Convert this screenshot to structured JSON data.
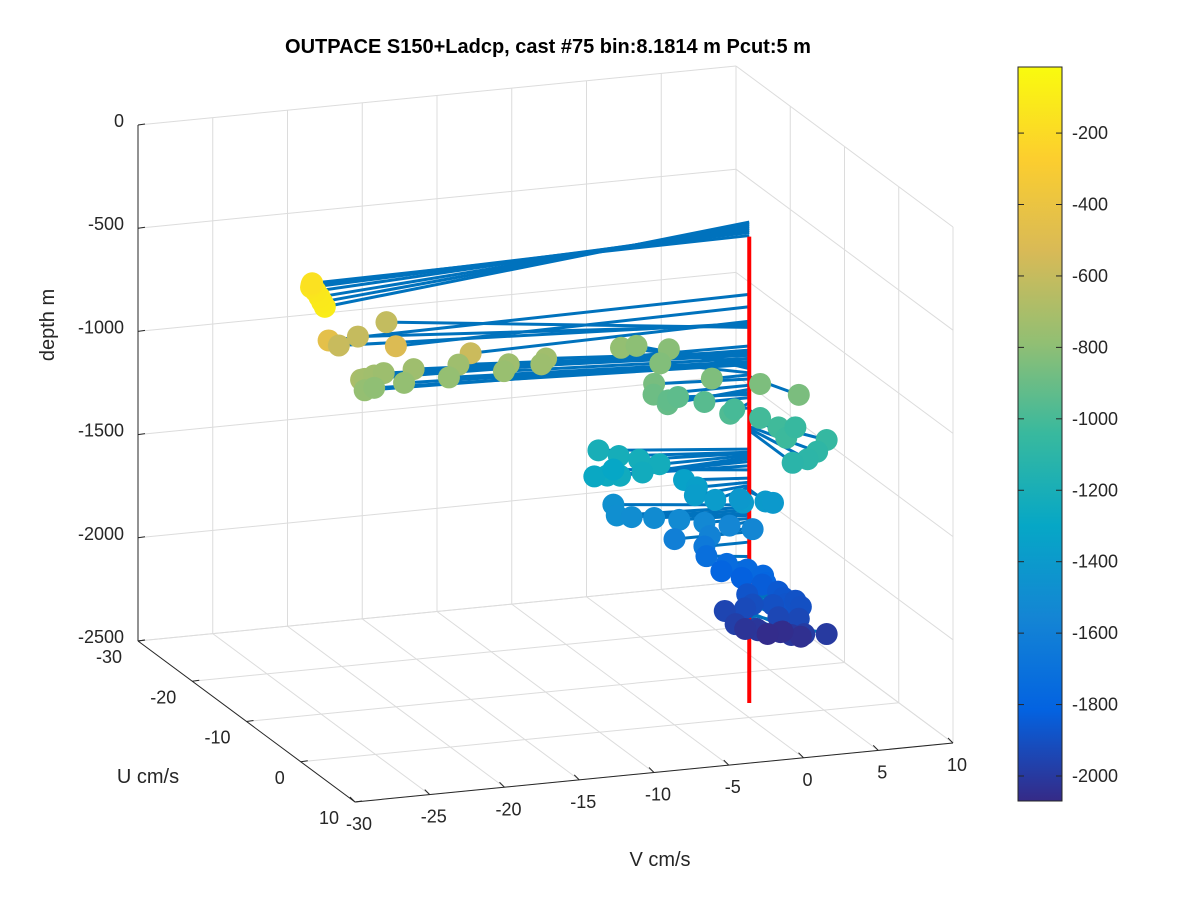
{
  "chart_data": {
    "type": "scatter3d",
    "title": "OUTPACE S150+Ladcp, cast #75 bin:8.1814 m  Pcut:5 m",
    "xlabel": "V cm/s",
    "ylabel": "U cm/s",
    "zlabel": "depth m",
    "xlim": [
      -30,
      10
    ],
    "ylim": [
      -30,
      10
    ],
    "zlim": [
      -2500,
      0
    ],
    "xticks": [
      "-30",
      "-25",
      "-20",
      "-15",
      "-10",
      "-5",
      "0",
      "5",
      "10"
    ],
    "yticks": [
      "-30",
      "-20",
      "-10",
      "0",
      "10"
    ],
    "zticks": [
      "0",
      "-500",
      "-1000",
      "-1500",
      "-2000",
      "-2500"
    ],
    "grid": true,
    "colorbar": {
      "ticks": [
        "-200",
        "-400",
        "-600",
        "-800",
        "-1000",
        "-1200",
        "-1400",
        "-1600",
        "-1800",
        "-2000"
      ],
      "range": [
        -2070,
        -15
      ],
      "colormap": [
        "#352a87",
        "#0363e1",
        "#1485d4",
        "#06a7c6",
        "#38b99e",
        "#92bf73",
        "#d9ba56",
        "#fcce2e",
        "#f9fb0e"
      ]
    },
    "profile_color": "#ff0000",
    "stem_color": "#0072bd",
    "points": [
      {
        "v": -31.8,
        "u": 9.4,
        "d": -100
      },
      {
        "v": -31.4,
        "u": 7.8,
        "d": -110
      },
      {
        "v": -31.0,
        "u": 6.2,
        "d": -120
      },
      {
        "v": -30.6,
        "u": 4.4,
        "d": -130
      },
      {
        "v": -30.4,
        "u": 3.0,
        "d": -140
      },
      {
        "v": -30.0,
        "u": 2.0,
        "d": -150
      },
      {
        "v": -29.6,
        "u": 1.0,
        "d": -165
      },
      {
        "v": -28.5,
        "u": 1.0,
        "d": -450
      },
      {
        "v": -24.0,
        "u": 1.0,
        "d": -510
      },
      {
        "v": -19.0,
        "u": 1.0,
        "d": -580
      },
      {
        "v": -26.0,
        "u": -4.0,
        "d": -590
      },
      {
        "v": -24.0,
        "u": -6.0,
        "d": -600
      },
      {
        "v": -21.0,
        "u": -9.0,
        "d": -610
      },
      {
        "v": -25.6,
        "u": -1.0,
        "d": -700
      },
      {
        "v": -25.0,
        "u": -2.0,
        "d": -720
      },
      {
        "v": -24.0,
        "u": -3.0,
        "d": -730
      },
      {
        "v": -23.0,
        "u": -4.0,
        "d": -745
      },
      {
        "v": -21.0,
        "u": -4.0,
        "d": -740
      },
      {
        "v": -18.0,
        "u": -4.0,
        "d": -740
      },
      {
        "v": -15.0,
        "u": -3.0,
        "d": -740
      },
      {
        "v": -12.5,
        "u": -3.0,
        "d": -730
      },
      {
        "v": -13.0,
        "u": -2.5,
        "d": -745
      },
      {
        "v": -15.5,
        "u": -2.5,
        "d": -760
      },
      {
        "v": -19.0,
        "u": -3.0,
        "d": -775
      },
      {
        "v": -22.0,
        "u": -3.0,
        "d": -780
      },
      {
        "v": -24.0,
        "u": -3.0,
        "d": -790
      },
      {
        "v": -25.0,
        "u": -2.0,
        "d": -775
      },
      {
        "v": -6.4,
        "u": -6.0,
        "d": -780
      },
      {
        "v": -5.0,
        "u": -7.0,
        "d": -800
      },
      {
        "v": -3.2,
        "u": -6.0,
        "d": -810
      },
      {
        "v": -4.5,
        "u": -4.0,
        "d": -830
      },
      {
        "v": -2.5,
        "u": 0.0,
        "d": -840
      },
      {
        "v": 0.0,
        "u": 2.0,
        "d": -845
      },
      {
        "v": 1.5,
        "u": 5.0,
        "d": -850
      },
      {
        "v": -6.0,
        "u": -1.0,
        "d": -860
      },
      {
        "v": -6.4,
        "u": 0.0,
        "d": -890
      },
      {
        "v": -6.0,
        "u": 1.5,
        "d": -910
      },
      {
        "v": -5.4,
        "u": 0.0,
        "d": -925
      },
      {
        "v": -4.4,
        "u": -1.0,
        "d": -935
      },
      {
        "v": -3.0,
        "u": 0.0,
        "d": -950
      },
      {
        "v": -2.0,
        "u": 2.0,
        "d": -975
      },
      {
        "v": -1.0,
        "u": 0.0,
        "d": -1000
      },
      {
        "v": 0.0,
        "u": 2.0,
        "d": -1010
      },
      {
        "v": 0.5,
        "u": 4.0,
        "d": -1020
      },
      {
        "v": 0.3,
        "u": 6.0,
        "d": -1030
      },
      {
        "v": 2.0,
        "u": 3.0,
        "d": -1050
      },
      {
        "v": 3.0,
        "u": 6.0,
        "d": -1060
      },
      {
        "v": 2.0,
        "u": 7.0,
        "d": -1090
      },
      {
        "v": 1.0,
        "u": 8.0,
        "d": -1100
      },
      {
        "v": 0.0,
        "u": 8.0,
        "d": -1110
      },
      {
        "v": -9.0,
        "u": -3.0,
        "d": -1200
      },
      {
        "v": -8.0,
        "u": -2.0,
        "d": -1215
      },
      {
        "v": -7.0,
        "u": -1.0,
        "d": -1220
      },
      {
        "v": -6.0,
        "u": 0.0,
        "d": -1230
      },
      {
        "v": -7.5,
        "u": 1.0,
        "d": -1240
      },
      {
        "v": -9.0,
        "u": 1.0,
        "d": -1245
      },
      {
        "v": -9.5,
        "u": 0.0,
        "d": -1260
      },
      {
        "v": -10.0,
        "u": -1.0,
        "d": -1280
      },
      {
        "v": -8.0,
        "u": -3.0,
        "d": -1300
      },
      {
        "v": -4.0,
        "u": -1.0,
        "d": -1340
      },
      {
        "v": -3.5,
        "u": 0.0,
        "d": -1360
      },
      {
        "v": -4.0,
        "u": 1.0,
        "d": -1375
      },
      {
        "v": -3.0,
        "u": 2.0,
        "d": -1385
      },
      {
        "v": -1.5,
        "u": 3.0,
        "d": -1390
      },
      {
        "v": 0.0,
        "u": 3.0,
        "d": -1395
      },
      {
        "v": 0.5,
        "u": 3.0,
        "d": -1405
      },
      {
        "v": -1.0,
        "u": 1.0,
        "d": -1415
      },
      {
        "v": -8.0,
        "u": -3.0,
        "d": -1470
      },
      {
        "v": -8.5,
        "u": -1.0,
        "d": -1480
      },
      {
        "v": -7.5,
        "u": -1.0,
        "d": -1495
      },
      {
        "v": -6.0,
        "u": -1.0,
        "d": -1510
      },
      {
        "v": -4.5,
        "u": -0.5,
        "d": -1520
      },
      {
        "v": -3.0,
        "u": 0.0,
        "d": -1535
      },
      {
        "v": -1.5,
        "u": 0.5,
        "d": -1550
      },
      {
        "v": -0.5,
        "u": 2.0,
        "d": -1545
      },
      {
        "v": -3.0,
        "u": 1.0,
        "d": -1580
      },
      {
        "v": -5.0,
        "u": 0.0,
        "d": -1600
      },
      {
        "v": -3.0,
        "u": 0.0,
        "d": -1650
      },
      {
        "v": -2.5,
        "u": -1.0,
        "d": -1720
      },
      {
        "v": -1.5,
        "u": 0.0,
        "d": -1745
      },
      {
        "v": -0.5,
        "u": 1.0,
        "d": -1760
      },
      {
        "v": 0.2,
        "u": 2.0,
        "d": -1775
      },
      {
        "v": 0.0,
        "u": 3.0,
        "d": -1790
      },
      {
        "v": -1.5,
        "u": -1.0,
        "d": -1800
      },
      {
        "v": -0.5,
        "u": 0.0,
        "d": -1820
      },
      {
        "v": 0.5,
        "u": 1.0,
        "d": -1840
      },
      {
        "v": 1.2,
        "u": 2.0,
        "d": -1860
      },
      {
        "v": 1.2,
        "u": 3.0,
        "d": -1870
      },
      {
        "v": 1.0,
        "u": 4.0,
        "d": -1880
      },
      {
        "v": -0.5,
        "u": 1.0,
        "d": -1880
      },
      {
        "v": 2.0,
        "u": 3.0,
        "d": -1890
      },
      {
        "v": 2.0,
        "u": 4.0,
        "d": -1900
      },
      {
        "v": 0.5,
        "u": 3.0,
        "d": -1900
      },
      {
        "v": -0.5,
        "u": 2.0,
        "d": -1910
      },
      {
        "v": -1.0,
        "u": 2.0,
        "d": -1925
      },
      {
        "v": 1.5,
        "u": 5.0,
        "d": -1935
      },
      {
        "v": 0.5,
        "u": 4.0,
        "d": -1940
      },
      {
        "v": -2.0,
        "u": 1.0,
        "d": -1950
      },
      {
        "v": -2.0,
        "u": 3.0,
        "d": -1975
      },
      {
        "v": -1.0,
        "u": 4.0,
        "d": -1985
      },
      {
        "v": 1.5,
        "u": 6.0,
        "d": -1990
      },
      {
        "v": 3.0,
        "u": 6.0,
        "d": -2000
      },
      {
        "v": 1.0,
        "u": 5.0,
        "d": -2010
      },
      {
        "v": -0.5,
        "u": 3.0,
        "d": -2015
      },
      {
        "v": -1.0,
        "u": 2.0,
        "d": -2025
      },
      {
        "v": 1.0,
        "u": 3.0,
        "d": -2035
      },
      {
        "v": 2.0,
        "u": 4.0,
        "d": -2045
      },
      {
        "v": 1.5,
        "u": 2.0,
        "d": -2055
      },
      {
        "v": 0.5,
        "u": 2.0,
        "d": -2060
      }
    ]
  }
}
